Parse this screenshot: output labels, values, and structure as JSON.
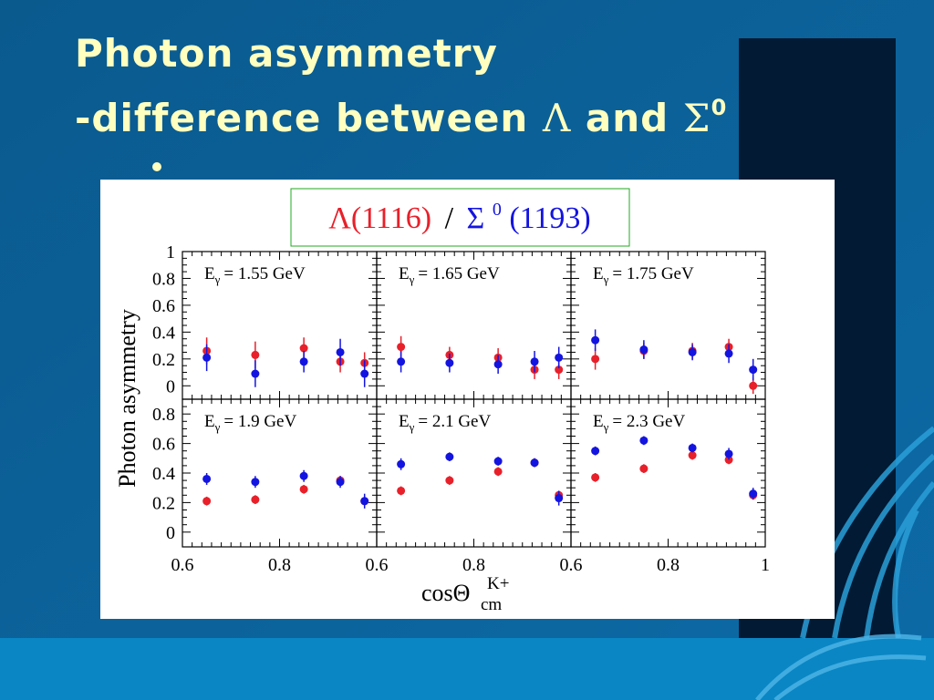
{
  "slide": {
    "title_line1": "Photon asymmetry",
    "title_line2_prefix": "-difference between",
    "title_lambda": "Λ",
    "title_and": "and",
    "title_sigma": "Σ",
    "title_sigma_sup": "0"
  },
  "colors": {
    "background": "#0c5e92",
    "title": "#ffffc0",
    "lambda": "#e8202a",
    "sigma": "#1414e0",
    "legend_border": "#22aa22"
  },
  "chart_data": {
    "type": "scatter",
    "legend": {
      "lambda_label": "Λ(1116)",
      "separator": "/",
      "sigma_symbol": "Σ",
      "sigma_sup": "0",
      "sigma_mass": "(1193)",
      "placement": "top-center"
    },
    "ylabel": "Photon asymmetry",
    "xlabel": "cosΘ",
    "xlabel_sub": "cm",
    "xlabel_sup": "K+",
    "xlim": [
      0.6,
      1.0
    ],
    "x_ticks": [
      "0.6",
      "0.8",
      "0.6",
      "0.8",
      "0.6",
      "0.8",
      "1"
    ],
    "y_ticks_top": [
      "1",
      "0.8",
      "0.6",
      "0.4",
      "0.2",
      "0"
    ],
    "y_ticks_bottom": [
      "0.8",
      "0.6",
      "0.4",
      "0.2",
      "0"
    ],
    "ylim_top": [
      -0.1,
      1.0
    ],
    "ylim_bottom": [
      -0.1,
      0.9
    ],
    "panels": [
      {
        "label_prefix": "E",
        "label_sub": "γ",
        "label_value": "= 1.55 GeV",
        "row": 0,
        "col": 0,
        "lambda": [
          [
            0.65,
            0.26,
            0.1
          ],
          [
            0.75,
            0.23,
            0.1
          ],
          [
            0.85,
            0.28,
            0.08
          ],
          [
            0.925,
            0.18,
            0.08
          ],
          [
            0.975,
            0.17,
            0.08
          ]
        ],
        "sigma": [
          [
            0.65,
            0.21,
            0.1
          ],
          [
            0.75,
            0.09,
            0.1
          ],
          [
            0.85,
            0.18,
            0.08
          ],
          [
            0.925,
            0.25,
            0.1
          ],
          [
            0.975,
            0.09,
            0.1
          ]
        ]
      },
      {
        "label_prefix": "E",
        "label_sub": "γ",
        "label_value": "= 1.65 GeV",
        "row": 0,
        "col": 1,
        "lambda": [
          [
            0.65,
            0.29,
            0.08
          ],
          [
            0.75,
            0.23,
            0.06
          ],
          [
            0.85,
            0.21,
            0.07
          ],
          [
            0.925,
            0.12,
            0.07
          ],
          [
            0.975,
            0.12,
            0.07
          ]
        ],
        "sigma": [
          [
            0.65,
            0.18,
            0.08
          ],
          [
            0.75,
            0.17,
            0.07
          ],
          [
            0.85,
            0.16,
            0.07
          ],
          [
            0.925,
            0.18,
            0.08
          ],
          [
            0.975,
            0.21,
            0.08
          ]
        ]
      },
      {
        "label_prefix": "E",
        "label_sub": "γ",
        "label_value": "= 1.75 GeV",
        "row": 0,
        "col": 2,
        "lambda": [
          [
            0.65,
            0.2,
            0.08
          ],
          [
            0.75,
            0.26,
            0.06
          ],
          [
            0.85,
            0.26,
            0.06
          ],
          [
            0.925,
            0.29,
            0.06
          ],
          [
            0.975,
            0.0,
            0.06
          ]
        ],
        "sigma": [
          [
            0.65,
            0.34,
            0.08
          ],
          [
            0.75,
            0.27,
            0.07
          ],
          [
            0.85,
            0.25,
            0.06
          ],
          [
            0.925,
            0.24,
            0.07
          ],
          [
            0.975,
            0.12,
            0.08
          ]
        ]
      },
      {
        "label_prefix": "E",
        "label_sub": "γ",
        "label_value": "= 1.9 GeV",
        "row": 1,
        "col": 0,
        "lambda": [
          [
            0.65,
            0.21,
            0.03
          ],
          [
            0.75,
            0.22,
            0.03
          ],
          [
            0.85,
            0.29,
            0.03
          ],
          [
            0.925,
            0.35,
            0.03
          ],
          [
            0.975,
            0.21,
            0.03
          ]
        ],
        "sigma": [
          [
            0.65,
            0.36,
            0.04
          ],
          [
            0.75,
            0.34,
            0.04
          ],
          [
            0.85,
            0.38,
            0.04
          ],
          [
            0.925,
            0.34,
            0.04
          ],
          [
            0.975,
            0.21,
            0.05
          ]
        ]
      },
      {
        "label_prefix": "E",
        "label_sub": "γ",
        "label_value": "= 2.1 GeV",
        "row": 1,
        "col": 1,
        "lambda": [
          [
            0.65,
            0.28,
            0.03
          ],
          [
            0.75,
            0.35,
            0.03
          ],
          [
            0.85,
            0.41,
            0.03
          ],
          [
            0.925,
            0.47,
            0.03
          ],
          [
            0.975,
            0.25,
            0.03
          ]
        ],
        "sigma": [
          [
            0.65,
            0.46,
            0.04
          ],
          [
            0.75,
            0.51,
            0.03
          ],
          [
            0.85,
            0.48,
            0.03
          ],
          [
            0.925,
            0.47,
            0.03
          ],
          [
            0.975,
            0.23,
            0.05
          ]
        ]
      },
      {
        "label_prefix": "E",
        "label_sub": "γ",
        "label_value": "= 2.3 GeV",
        "row": 1,
        "col": 2,
        "lambda": [
          [
            0.65,
            0.37,
            0.03
          ],
          [
            0.75,
            0.43,
            0.03
          ],
          [
            0.85,
            0.52,
            0.03
          ],
          [
            0.925,
            0.49,
            0.03
          ],
          [
            0.975,
            0.25,
            0.03
          ]
        ],
        "sigma": [
          [
            0.65,
            0.55,
            0.03
          ],
          [
            0.75,
            0.62,
            0.03
          ],
          [
            0.85,
            0.57,
            0.03
          ],
          [
            0.925,
            0.53,
            0.04
          ],
          [
            0.975,
            0.26,
            0.04
          ]
        ]
      }
    ]
  }
}
